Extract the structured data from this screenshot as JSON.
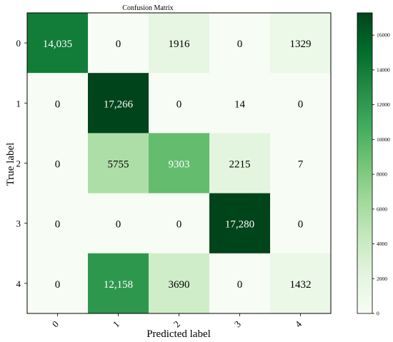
{
  "chart_data": {
    "type": "heatmap",
    "title": "Confusion Matrix",
    "xlabel": "Predicted label",
    "ylabel": "True label",
    "x_categories": [
      "0",
      "1",
      "2",
      "3",
      "4"
    ],
    "y_categories": [
      "0",
      "1",
      "2",
      "3",
      "4"
    ],
    "values": [
      [
        14035,
        0,
        1916,
        0,
        1329
      ],
      [
        0,
        17266,
        0,
        14,
        0
      ],
      [
        0,
        5755,
        9303,
        2215,
        7
      ],
      [
        0,
        0,
        0,
        17280,
        0
      ],
      [
        0,
        12158,
        3690,
        0,
        1432
      ]
    ],
    "cell_labels": [
      [
        "14,035",
        "0",
        "1916",
        "0",
        "1329"
      ],
      [
        "0",
        "17,266",
        "0",
        "14",
        "0"
      ],
      [
        "0",
        "5755",
        "9303",
        "2215",
        "7"
      ],
      [
        "0",
        "0",
        "0",
        "17,280",
        "0"
      ],
      [
        "0",
        "12,158",
        "3690",
        "0",
        "1432"
      ]
    ],
    "colormap": "Greens",
    "colorbar": {
      "range": [
        0,
        17280
      ],
      "ticks": [
        0,
        2000,
        4000,
        6000,
        8000,
        10000,
        12000,
        14000,
        16000
      ],
      "tick_labels": [
        "0",
        "2000",
        "4000",
        "6000",
        "8000",
        "10000",
        "12000",
        "14000",
        "16000"
      ]
    },
    "grid": false,
    "colors": {
      "low": "#f7fcf5",
      "high": "#00441b",
      "text_dark": "#000000",
      "text_light": "#ffffff"
    }
  }
}
